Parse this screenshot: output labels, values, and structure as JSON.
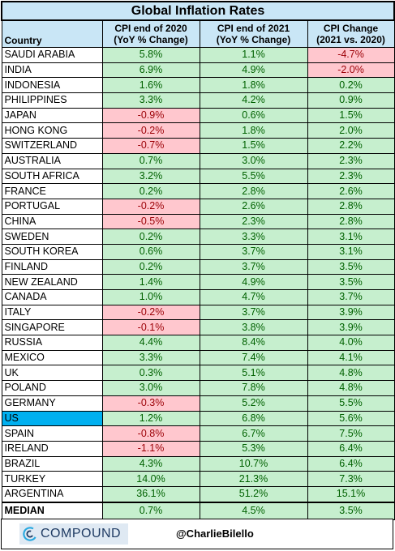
{
  "chart_data": {
    "type": "table",
    "title": "Global Inflation Rates",
    "columns": [
      "Country",
      "CPI end of 2020 (YoY % Change)",
      "CPI end of 2021 (YoY % Change)",
      "CPI Change (2021 vs. 2020)"
    ],
    "column_headers": {
      "country": "Country",
      "cpi2020_line1": "CPI end of 2020",
      "cpi2020_line2": "(YoY % Change)",
      "cpi2021_line1": "CPI end of 2021",
      "cpi2021_line2": "(YoY % Change)",
      "change_line1": "CPI Change",
      "change_line2": "(2021 vs. 2020)"
    },
    "rows": [
      {
        "country": "SAUDI ARABIA",
        "cpi2020": "5.8%",
        "cpi2021": "1.1%",
        "change": "-4.7%"
      },
      {
        "country": "INDIA",
        "cpi2020": "6.9%",
        "cpi2021": "4.9%",
        "change": "-2.0%"
      },
      {
        "country": "INDONESIA",
        "cpi2020": "1.6%",
        "cpi2021": "1.8%",
        "change": "0.2%"
      },
      {
        "country": "PHILIPPINES",
        "cpi2020": "3.3%",
        "cpi2021": "4.2%",
        "change": "0.9%"
      },
      {
        "country": "JAPAN",
        "cpi2020": "-0.9%",
        "cpi2021": "0.6%",
        "change": "1.5%"
      },
      {
        "country": "HONG KONG",
        "cpi2020": "-0.2%",
        "cpi2021": "1.8%",
        "change": "2.0%"
      },
      {
        "country": "SWITZERLAND",
        "cpi2020": "-0.7%",
        "cpi2021": "1.5%",
        "change": "2.2%"
      },
      {
        "country": "AUSTRALIA",
        "cpi2020": "0.7%",
        "cpi2021": "3.0%",
        "change": "2.3%"
      },
      {
        "country": "SOUTH AFRICA",
        "cpi2020": "3.2%",
        "cpi2021": "5.5%",
        "change": "2.3%"
      },
      {
        "country": "FRANCE",
        "cpi2020": "0.2%",
        "cpi2021": "2.8%",
        "change": "2.6%"
      },
      {
        "country": "PORTUGAL",
        "cpi2020": "-0.2%",
        "cpi2021": "2.6%",
        "change": "2.8%"
      },
      {
        "country": "CHINA",
        "cpi2020": "-0.5%",
        "cpi2021": "2.3%",
        "change": "2.8%"
      },
      {
        "country": "SWEDEN",
        "cpi2020": "0.2%",
        "cpi2021": "3.3%",
        "change": "3.1%"
      },
      {
        "country": "SOUTH KOREA",
        "cpi2020": "0.6%",
        "cpi2021": "3.7%",
        "change": "3.1%"
      },
      {
        "country": "FINLAND",
        "cpi2020": "0.2%",
        "cpi2021": "3.7%",
        "change": "3.5%"
      },
      {
        "country": "NEW ZEALAND",
        "cpi2020": "1.4%",
        "cpi2021": "4.9%",
        "change": "3.5%"
      },
      {
        "country": "CANADA",
        "cpi2020": "1.0%",
        "cpi2021": "4.7%",
        "change": "3.7%"
      },
      {
        "country": "ITALY",
        "cpi2020": "-0.2%",
        "cpi2021": "3.7%",
        "change": "3.9%"
      },
      {
        "country": "SINGAPORE",
        "cpi2020": "-0.1%",
        "cpi2021": "3.8%",
        "change": "3.9%"
      },
      {
        "country": "RUSSIA",
        "cpi2020": "4.4%",
        "cpi2021": "8.4%",
        "change": "4.0%"
      },
      {
        "country": "MEXICO",
        "cpi2020": "3.3%",
        "cpi2021": "7.4%",
        "change": "4.1%"
      },
      {
        "country": "UK",
        "cpi2020": "0.3%",
        "cpi2021": "5.1%",
        "change": "4.8%"
      },
      {
        "country": "POLAND",
        "cpi2020": "3.0%",
        "cpi2021": "7.8%",
        "change": "4.8%"
      },
      {
        "country": "GERMANY",
        "cpi2020": "-0.3%",
        "cpi2021": "5.2%",
        "change": "5.5%"
      },
      {
        "country": "US",
        "cpi2020": "1.2%",
        "cpi2021": "6.8%",
        "change": "5.6%",
        "highlight": true
      },
      {
        "country": "SPAIN",
        "cpi2020": "-0.8%",
        "cpi2021": "6.7%",
        "change": "7.5%"
      },
      {
        "country": "IRELAND",
        "cpi2020": "-1.1%",
        "cpi2021": "5.3%",
        "change": "6.4%"
      },
      {
        "country": "BRAZIL",
        "cpi2020": "4.3%",
        "cpi2021": "10.7%",
        "change": "6.4%"
      },
      {
        "country": "TURKEY",
        "cpi2020": "14.0%",
        "cpi2021": "21.3%",
        "change": "7.3%"
      },
      {
        "country": "ARGENTINA",
        "cpi2020": "36.1%",
        "cpi2021": "51.2%",
        "change": "15.1%"
      }
    ],
    "median": {
      "label": "MEDIAN",
      "cpi2020": "0.7%",
      "cpi2021": "4.5%",
      "change": "3.5%"
    },
    "colors": {
      "positive_fill": "#c6efce",
      "negative_fill": "#ffc7ce",
      "header_fill": "#c9e6f6",
      "highlight_fill": "#00b0f0"
    }
  },
  "footer": {
    "logo_text": "COMPOUND",
    "logo_icon": "compound-logo-icon",
    "handle": "@CharlieBilello"
  }
}
